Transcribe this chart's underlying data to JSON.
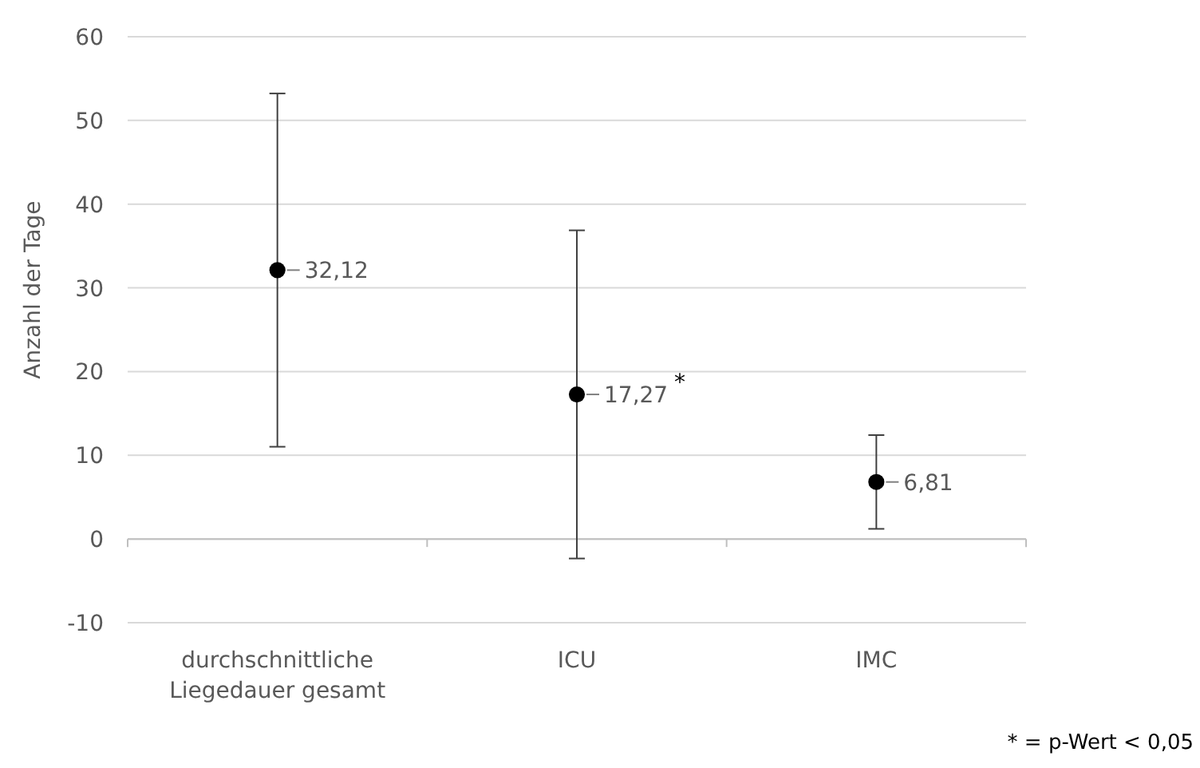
{
  "chart_data": {
    "type": "scatter",
    "ylabel": "Anzahl der Tage",
    "categories": [
      "durchschnittliche Liegedauer gesamt",
      "ICU",
      "IMC"
    ],
    "series": [
      {
        "color": "#000000",
        "values": [
          32.12,
          17.27,
          6.81
        ],
        "errors": [
          21.1,
          19.6,
          5.6
        ],
        "value_labels": [
          "32,12",
          "17,27",
          "6,81"
        ]
      }
    ],
    "ylim": [
      -10,
      60
    ],
    "yticks": [
      -10,
      0,
      10,
      20,
      30,
      40,
      50,
      60
    ],
    "grid": "y",
    "marker": "circle",
    "annotations": [
      "*",
      "* = p-Wert < 0,05"
    ]
  }
}
